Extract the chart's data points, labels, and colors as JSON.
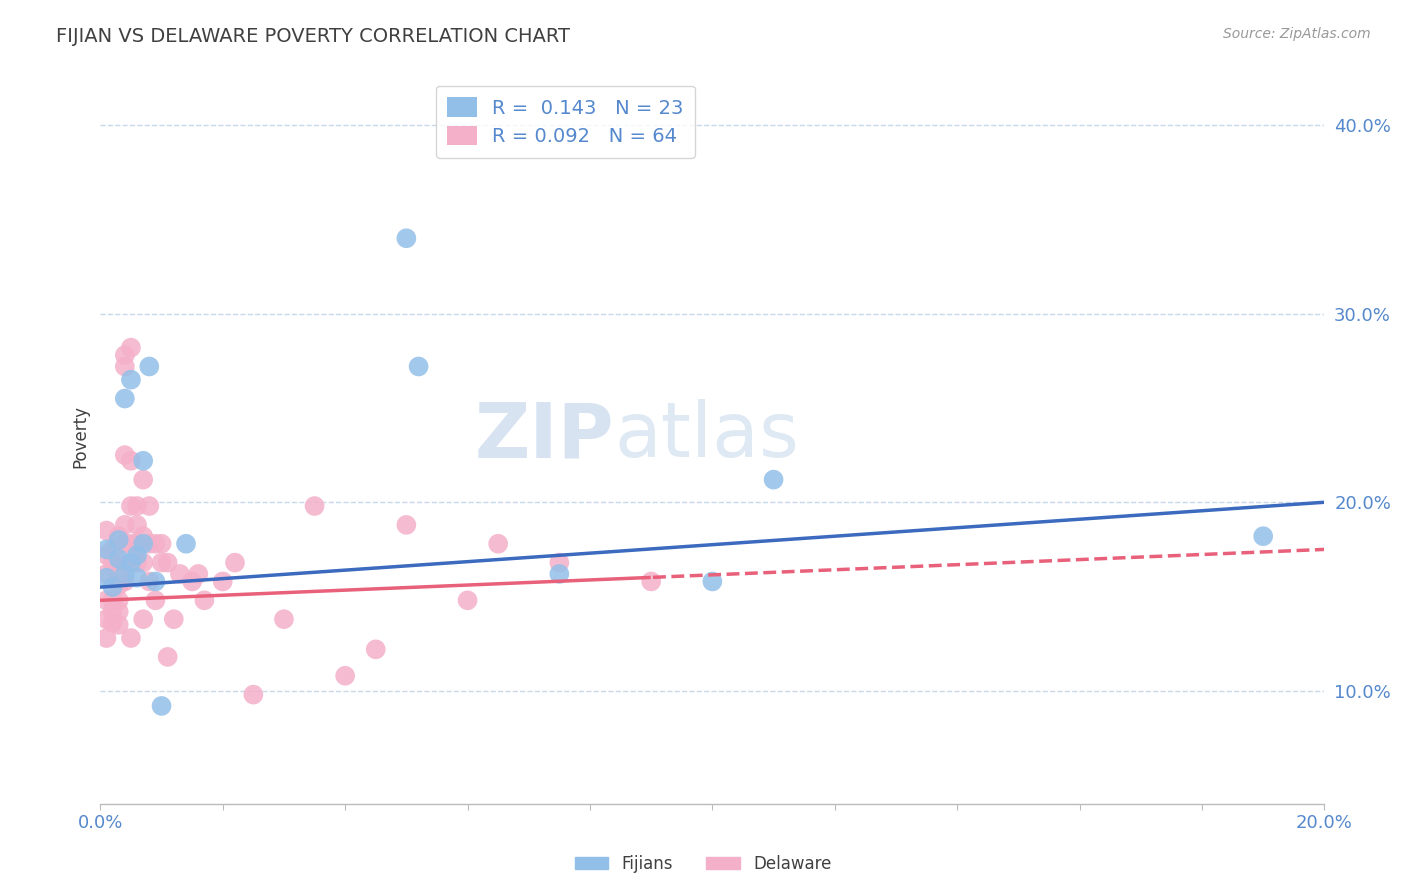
{
  "title": "FIJIAN VS DELAWARE POVERTY CORRELATION CHART",
  "source_text": "Source: ZipAtlas.com",
  "ylabel": "Poverty",
  "xlim": [
    0.0,
    0.2
  ],
  "ylim": [
    0.04,
    0.43
  ],
  "xticks": [
    0.0,
    0.02,
    0.04,
    0.06,
    0.08,
    0.1,
    0.12,
    0.14,
    0.16,
    0.18,
    0.2
  ],
  "yticks": [
    0.1,
    0.2,
    0.3,
    0.4
  ],
  "fijian_R": 0.143,
  "fijian_N": 23,
  "delaware_R": 0.092,
  "delaware_N": 64,
  "fijian_color": "#92bfe8",
  "delaware_color": "#f4b0c8",
  "fijian_line_color": "#3b6abf",
  "delaware_line_color": "#e8607a",
  "background_color": "#ffffff",
  "title_color": "#404040",
  "axis_label_color": "#5588cc",
  "grid_color": "#c8d8e8",
  "watermark": "ZIPatlas",
  "fijian_x": [
    0.001,
    0.001,
    0.002,
    0.003,
    0.003,
    0.004,
    0.004,
    0.005,
    0.005,
    0.006,
    0.006,
    0.007,
    0.007,
    0.008,
    0.009,
    0.01,
    0.014,
    0.05,
    0.052,
    0.075,
    0.1,
    0.11,
    0.19
  ],
  "fijian_y": [
    0.175,
    0.16,
    0.155,
    0.17,
    0.18,
    0.162,
    0.255,
    0.168,
    0.265,
    0.172,
    0.16,
    0.178,
    0.222,
    0.272,
    0.158,
    0.092,
    0.178,
    0.34,
    0.272,
    0.162,
    0.158,
    0.212,
    0.182
  ],
  "delaware_x": [
    0.001,
    0.001,
    0.001,
    0.001,
    0.001,
    0.001,
    0.002,
    0.002,
    0.002,
    0.002,
    0.002,
    0.003,
    0.003,
    0.003,
    0.003,
    0.003,
    0.003,
    0.003,
    0.004,
    0.004,
    0.004,
    0.004,
    0.004,
    0.004,
    0.005,
    0.005,
    0.005,
    0.005,
    0.005,
    0.005,
    0.006,
    0.006,
    0.006,
    0.006,
    0.007,
    0.007,
    0.007,
    0.007,
    0.008,
    0.008,
    0.008,
    0.009,
    0.009,
    0.01,
    0.01,
    0.011,
    0.011,
    0.012,
    0.013,
    0.015,
    0.016,
    0.017,
    0.02,
    0.022,
    0.025,
    0.03,
    0.035,
    0.04,
    0.045,
    0.05,
    0.06,
    0.065,
    0.075,
    0.09
  ],
  "delaware_y": [
    0.185,
    0.172,
    0.162,
    0.148,
    0.138,
    0.128,
    0.168,
    0.175,
    0.148,
    0.142,
    0.136,
    0.182,
    0.168,
    0.162,
    0.156,
    0.148,
    0.142,
    0.135,
    0.278,
    0.272,
    0.225,
    0.188,
    0.178,
    0.158,
    0.282,
    0.222,
    0.198,
    0.178,
    0.168,
    0.128,
    0.198,
    0.188,
    0.178,
    0.168,
    0.212,
    0.182,
    0.168,
    0.138,
    0.198,
    0.178,
    0.158,
    0.178,
    0.148,
    0.178,
    0.168,
    0.118,
    0.168,
    0.138,
    0.162,
    0.158,
    0.162,
    0.148,
    0.158,
    0.168,
    0.098,
    0.138,
    0.198,
    0.108,
    0.122,
    0.188,
    0.148,
    0.178,
    0.168,
    0.158
  ]
}
